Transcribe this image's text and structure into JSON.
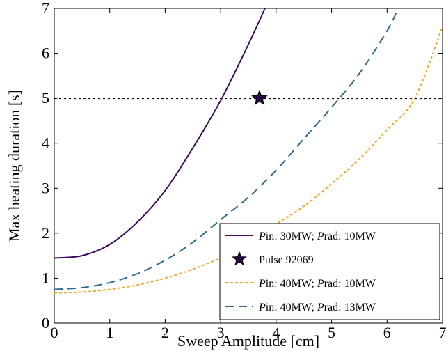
{
  "chart_data": {
    "type": "line",
    "xlabel": "Sweep Amplitude [cm]",
    "ylabel": "Max heating duration [s]",
    "xlim": [
      0,
      7
    ],
    "ylim": [
      0,
      7
    ],
    "x_ticks": [
      "0",
      "1",
      "2",
      "3",
      "4",
      "5",
      "6",
      "7"
    ],
    "y_ticks": [
      "0",
      "1",
      "2",
      "3",
      "4",
      "5",
      "6",
      "7"
    ],
    "grid": false,
    "legend_position": "bottom-right",
    "reference_line": {
      "y": 5,
      "style": "dotted",
      "color": "#000000"
    },
    "series": [
      {
        "key": "s1",
        "legend": {
          "p1": "P",
          "t1": "in: 30MW; ",
          "p2": "P",
          "t2": "rad: 10MW"
        },
        "style": "solid",
        "color": "#3f0a5c",
        "x": [
          0,
          0.5,
          1,
          1.5,
          2,
          2.5,
          3,
          3.5,
          3.8
        ],
        "y": [
          1.45,
          1.5,
          1.75,
          2.25,
          2.95,
          3.9,
          4.95,
          6.2,
          7.0
        ]
      },
      {
        "key": "s2",
        "legend": {
          "p1": "P",
          "t1": "in: 40MW; ",
          "p2": "P",
          "t2": "rad: 10MW"
        },
        "style": "dotted",
        "color": "#f5a623",
        "x": [
          0,
          0.5,
          1,
          1.5,
          2,
          2.5,
          3,
          3.5,
          4,
          4.5,
          5,
          5.5,
          6,
          6.5,
          7
        ],
        "y": [
          0.67,
          0.69,
          0.75,
          0.85,
          1.0,
          1.2,
          1.45,
          1.75,
          2.2,
          2.6,
          3.1,
          3.65,
          4.3,
          5.0,
          6.6
        ]
      },
      {
        "key": "s3",
        "legend": {
          "p1": "P",
          "t1": "in: 40MW; ",
          "p2": "P",
          "t2": "rad: 13MW"
        },
        "style": "dashed",
        "color": "#2f6b8f",
        "x": [
          0,
          0.5,
          1,
          1.5,
          2,
          2.5,
          3,
          3.5,
          4,
          4.5,
          5,
          5.5,
          6,
          6.2
        ],
        "y": [
          0.75,
          0.79,
          0.9,
          1.1,
          1.4,
          1.8,
          2.3,
          2.8,
          3.4,
          4.1,
          4.8,
          5.55,
          6.5,
          7.0
        ]
      }
    ],
    "markers": [
      {
        "label": "Pulse 92069",
        "x": 3.7,
        "y": 5.0,
        "symbol": "star",
        "color": "#2a0a45"
      }
    ]
  }
}
